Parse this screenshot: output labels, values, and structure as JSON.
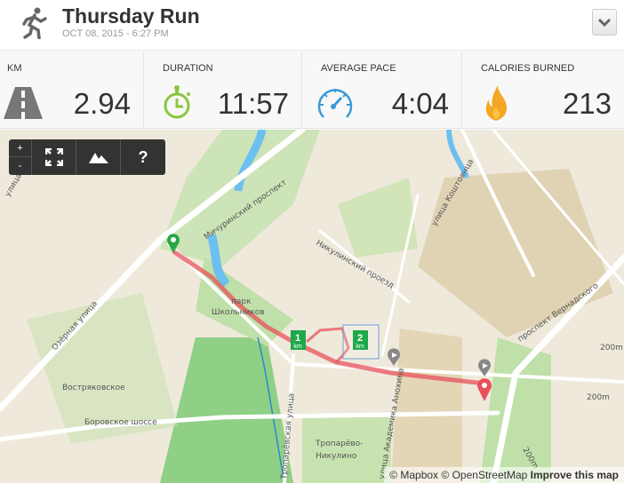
{
  "header": {
    "title": "Thursday Run",
    "date": "OCT 08, 2015  -  6:27 PM",
    "activity_icon": "runner-icon",
    "menu_icon": "chevron-down-icon"
  },
  "stats": [
    {
      "label": "KM",
      "value": "2.94",
      "icon": "road-icon",
      "color": "#777777"
    },
    {
      "label": "DURATION",
      "value": "11:57",
      "icon": "stopwatch-icon",
      "color": "#8cc63f"
    },
    {
      "label": "AVERAGE PACE",
      "value": "4:04",
      "icon": "speedometer-icon",
      "color": "#3a9ad9"
    },
    {
      "label": "CALORIES BURNED",
      "value": "213",
      "icon": "flame-icon",
      "color": "#f5a623"
    }
  ],
  "map_controls": {
    "zoom_in": "+",
    "zoom_out": "-",
    "fullscreen_icon": "expand-icon",
    "terrain_icon": "mountain-icon",
    "help": "?"
  },
  "map": {
    "route_color": "#e8505b",
    "labels": {
      "michurinsky": "Мичуринский проспект",
      "koshtoyantsa": "улица Коштоянца",
      "nikulinsky": "Никулинский проезд",
      "park": "парк",
      "park2": "Школьников",
      "ozernaya": "Озёрная улица",
      "vostryakovskoe": "Востряковское",
      "borovskoe": "Боровское шоссе",
      "troparevo": "Тропарёво-",
      "nikulino": "Никулино",
      "anokhina": "улица Академика Анохина",
      "vernadskogo": "проспект Вернадского",
      "troparevskaya": "Тропарёвская улица",
      "ulitsa": "улица",
      "m200a": "200m",
      "m200b": "200m",
      "m200c": "200m"
    },
    "km_markers": [
      "1",
      "2"
    ],
    "km_unit": "km"
  },
  "attribution": {
    "mapbox": "© Mapbox",
    "osm": "© OpenStreetMap",
    "improve": "Improve this map"
  }
}
